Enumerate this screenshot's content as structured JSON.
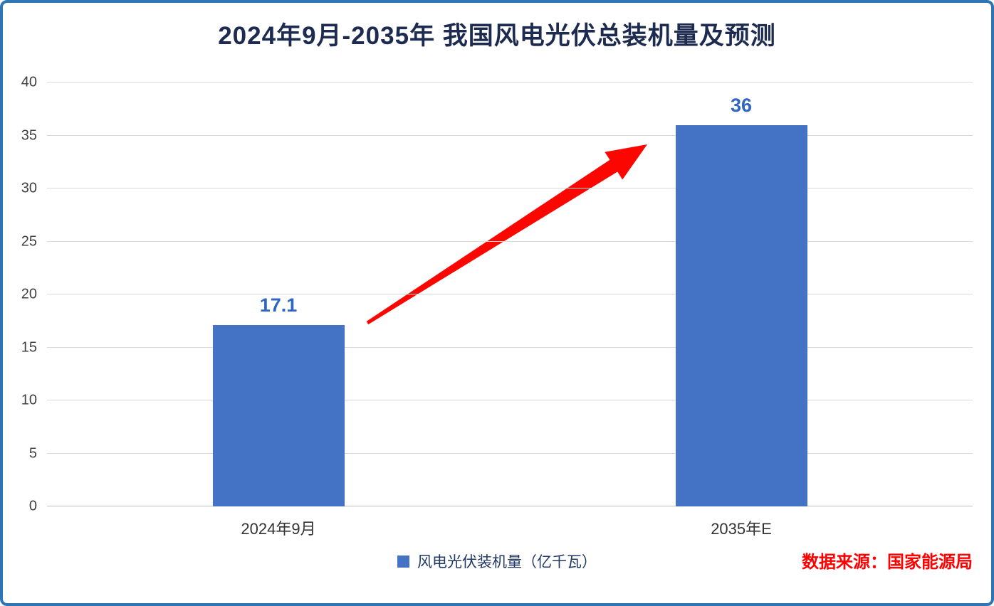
{
  "chart_data": {
    "type": "bar",
    "title": "2024年9月-2035年 我国风电光伏总装机量及预测",
    "categories": [
      "2024年9月",
      "2035年E"
    ],
    "values": [
      17.1,
      36
    ],
    "series": [
      {
        "name": "风电光伏装机量（亿千瓦）",
        "values": [
          17.1,
          36
        ]
      }
    ],
    "xlabel": "",
    "ylabel": "",
    "ylim": [
      0,
      40
    ],
    "yticks": [
      0,
      5,
      10,
      15,
      20,
      25,
      30,
      35,
      40
    ],
    "grid": true,
    "legend_position": "bottom",
    "bar_color": "#4472C4",
    "value_label_color": "#2F66C4",
    "annotation": {
      "type": "arrow",
      "color": "#FB0600",
      "from_category": "2024年9月",
      "to_category": "2035年E",
      "meaning": "increase from 17.1 to 36"
    }
  },
  "frame": {
    "border_color": "#2E75B6",
    "title_color": "#1D2B50",
    "background": "#FFFFFF"
  },
  "footer": {
    "legend_label": "风电光伏装机量（亿千瓦）",
    "source": "数据来源：国家能源局",
    "source_color": "#FF0000"
  }
}
